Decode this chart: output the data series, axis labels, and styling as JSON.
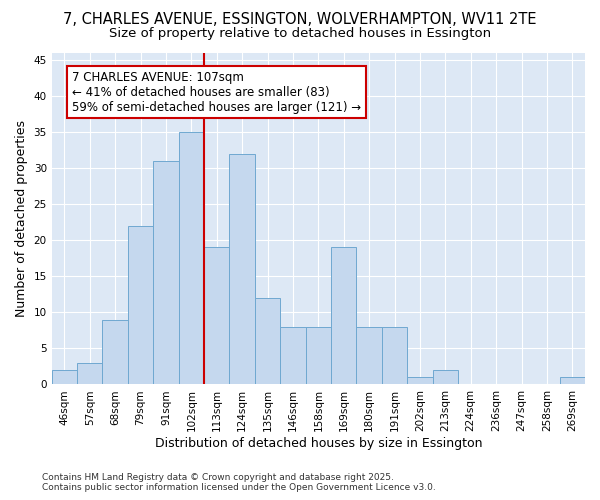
{
  "title_line1": "7, CHARLES AVENUE, ESSINGTON, WOLVERHAMPTON, WV11 2TE",
  "title_line2": "Size of property relative to detached houses in Essington",
  "xlabel": "Distribution of detached houses by size in Essington",
  "ylabel": "Number of detached properties",
  "categories": [
    "46sqm",
    "57sqm",
    "68sqm",
    "79sqm",
    "91sqm",
    "102sqm",
    "113sqm",
    "124sqm",
    "135sqm",
    "146sqm",
    "158sqm",
    "169sqm",
    "180sqm",
    "191sqm",
    "202sqm",
    "213sqm",
    "224sqm",
    "236sqm",
    "247sqm",
    "258sqm",
    "269sqm"
  ],
  "values": [
    2,
    3,
    9,
    22,
    31,
    35,
    19,
    32,
    12,
    8,
    8,
    19,
    8,
    8,
    1,
    2,
    0,
    0,
    0,
    0,
    1
  ],
  "bar_color": "#c5d8ee",
  "bar_edge_color": "#6fa8d0",
  "vline_x": 5.5,
  "vline_color": "#cc0000",
  "annotation_line1": "7 CHARLES AVENUE: 107sqm",
  "annotation_line2": "← 41% of detached houses are smaller (83)",
  "annotation_line3": "59% of semi-detached houses are larger (121) →",
  "ylim": [
    0,
    46
  ],
  "yticks": [
    0,
    5,
    10,
    15,
    20,
    25,
    30,
    35,
    40,
    45
  ],
  "fig_bg_color": "#ffffff",
  "plot_bg_color": "#dde8f5",
  "grid_color": "#ffffff",
  "footer_text": "Contains HM Land Registry data © Crown copyright and database right 2025.\nContains public sector information licensed under the Open Government Licence v3.0.",
  "title_fontsize": 10.5,
  "subtitle_fontsize": 9.5,
  "axis_label_fontsize": 9,
  "tick_fontsize": 7.5,
  "annotation_fontsize": 8.5,
  "footer_fontsize": 6.5
}
